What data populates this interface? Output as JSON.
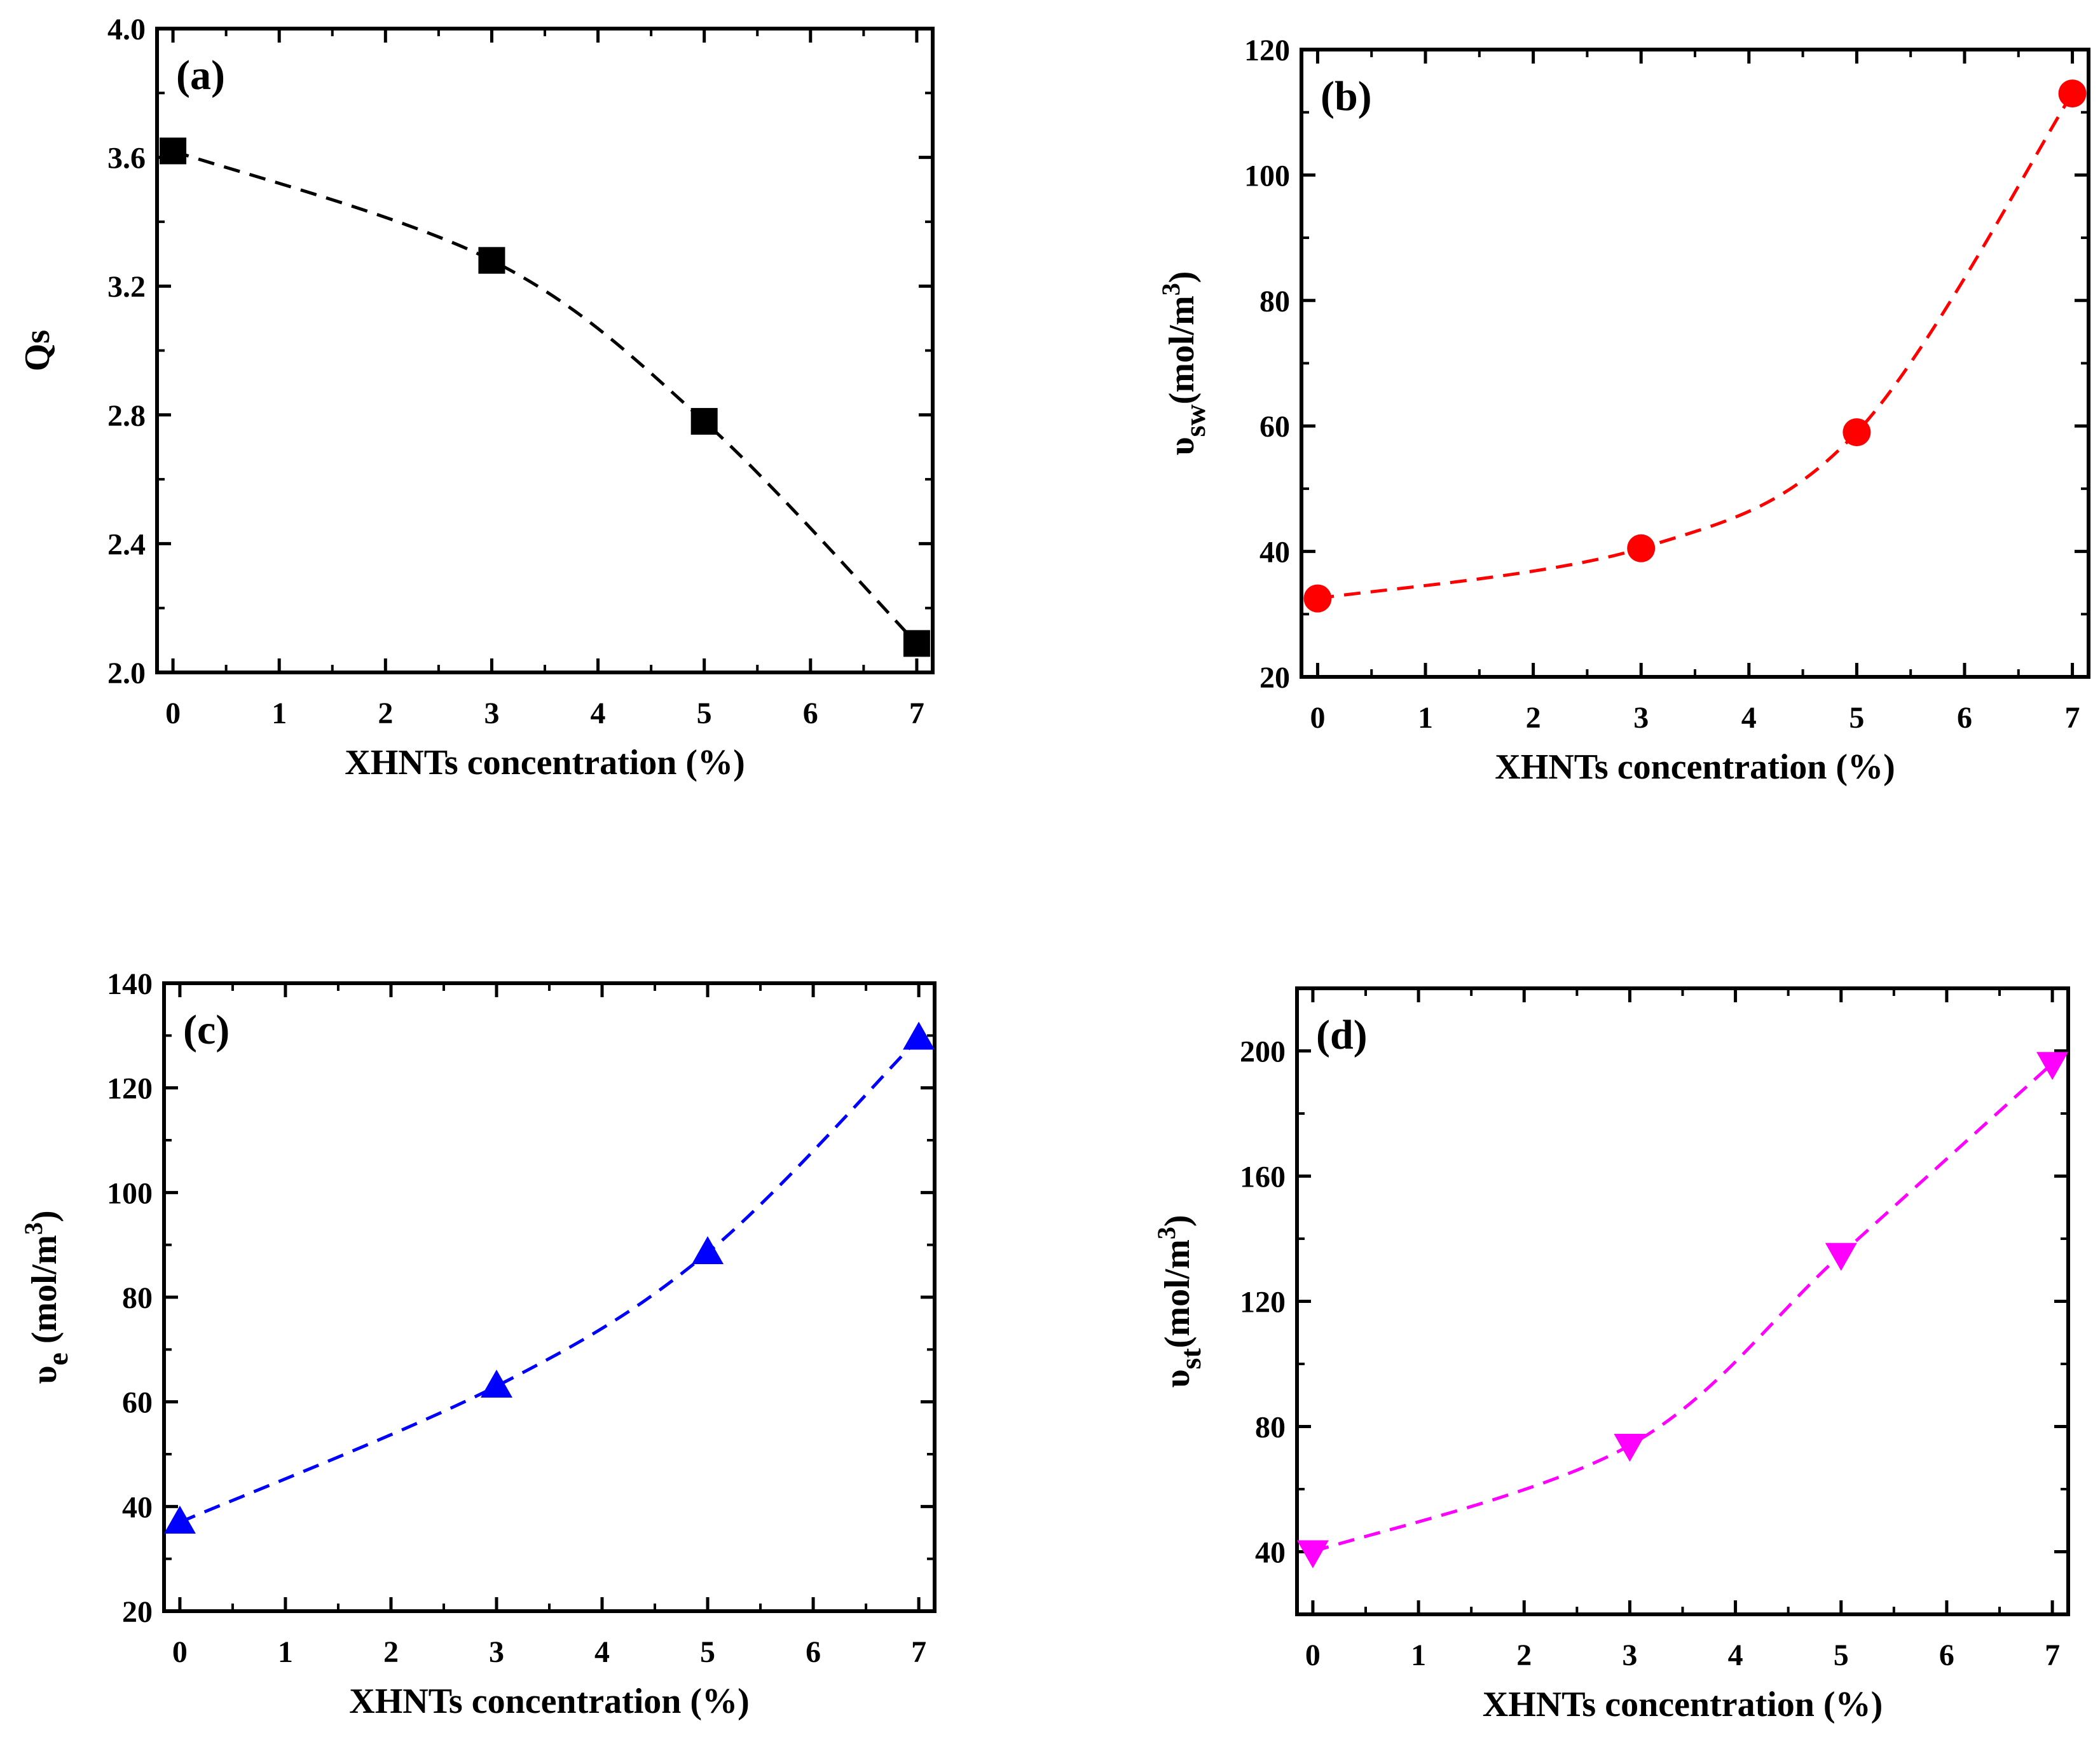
{
  "chart_data": [
    {
      "type": "line",
      "panel_label": "(a)",
      "xlabel": "XHNTs concentration (%)",
      "ylabel": "Qs",
      "ylabel_sub": "",
      "ylabel_unit": "",
      "ylabel_sup": "",
      "x": [
        0,
        3,
        5,
        7
      ],
      "y": [
        3.62,
        3.28,
        2.78,
        2.09
      ],
      "xlim": [
        -0.15,
        7.15
      ],
      "ylim": [
        2.0,
        4.0
      ],
      "xticks": [
        0,
        1,
        2,
        3,
        4,
        5,
        6,
        7
      ],
      "yticks": [
        2.0,
        2.4,
        2.8,
        3.2,
        3.6,
        4.0
      ],
      "ytick_decimals": 1,
      "marker": "square",
      "color": "#000000",
      "line_style": "dashed"
    },
    {
      "type": "line",
      "panel_label": "(b)",
      "xlabel": "XHNTs concentration (%)",
      "ylabel": "υ",
      "ylabel_sub": "sw",
      "ylabel_unit": "(mol/m",
      "ylabel_sup": "3",
      "x": [
        0,
        3,
        5,
        7
      ],
      "y": [
        32.5,
        40.5,
        59.0,
        113.0
      ],
      "xlim": [
        -0.15,
        7.15
      ],
      "ylim": [
        20,
        120
      ],
      "xticks": [
        0,
        1,
        2,
        3,
        4,
        5,
        6,
        7
      ],
      "yticks": [
        20,
        40,
        60,
        80,
        100,
        120
      ],
      "ytick_decimals": 0,
      "marker": "circle",
      "color": "#ff0000",
      "line_style": "dashed"
    },
    {
      "type": "line",
      "panel_label": "(c)",
      "xlabel": "XHNTs concentration (%)",
      "ylabel": "υ",
      "ylabel_sub": "e",
      "ylabel_unit": " (mol/m",
      "ylabel_sup": "3",
      "x": [
        0,
        3,
        5,
        7
      ],
      "y": [
        37.0,
        63.0,
        88.5,
        129.5
      ],
      "xlim": [
        -0.15,
        7.15
      ],
      "ylim": [
        20,
        140
      ],
      "xticks": [
        0,
        1,
        2,
        3,
        4,
        5,
        6,
        7
      ],
      "yticks": [
        20,
        40,
        60,
        80,
        100,
        120,
        140
      ],
      "ytick_decimals": 0,
      "marker": "triangle-up",
      "color": "#0000ff",
      "line_style": "dashed"
    },
    {
      "type": "line",
      "panel_label": "(d)",
      "xlabel": "XHNTs concentration (%)",
      "ylabel": "υ",
      "ylabel_sub": "st",
      "ylabel_unit": "(mol/m",
      "ylabel_sup": "3",
      "x": [
        0,
        3,
        5,
        7
      ],
      "y": [
        40.0,
        74.0,
        135.0,
        196.0
      ],
      "xlim": [
        -0.15,
        7.15
      ],
      "ylim": [
        20,
        220
      ],
      "xticks": [
        0,
        1,
        2,
        3,
        4,
        5,
        6,
        7
      ],
      "yticks": [
        40,
        80,
        120,
        160,
        200
      ],
      "ytick_decimals": 0,
      "marker": "triangle-down",
      "color": "#ff00ff",
      "line_style": "dashed"
    }
  ]
}
